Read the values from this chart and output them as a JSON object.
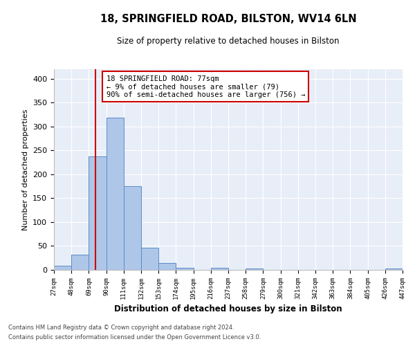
{
  "title": "18, SPRINGFIELD ROAD, BILSTON, WV14 6LN",
  "subtitle": "Size of property relative to detached houses in Bilston",
  "xlabel": "Distribution of detached houses by size in Bilston",
  "ylabel": "Number of detached properties",
  "bar_values": [
    8,
    32,
    238,
    319,
    175,
    46,
    15,
    5,
    0,
    5,
    0,
    3,
    0,
    0,
    0,
    0,
    0,
    0,
    0,
    3
  ],
  "bin_labels": [
    "27sqm",
    "48sqm",
    "69sqm",
    "90sqm",
    "111sqm",
    "132sqm",
    "153sqm",
    "174sqm",
    "195sqm",
    "216sqm",
    "237sqm",
    "258sqm",
    "279sqm",
    "300sqm",
    "321sqm",
    "342sqm",
    "363sqm",
    "384sqm",
    "405sqm",
    "426sqm",
    "447sqm"
  ],
  "bar_color": "#aec6e8",
  "bar_edge_color": "#5b8cc8",
  "fig_background": "#ffffff",
  "axes_background": "#e8eef8",
  "grid_color": "#ffffff",
  "vline_color": "#cc0000",
  "annotation_text": "18 SPRINGFIELD ROAD: 77sqm\n← 9% of detached houses are smaller (79)\n90% of semi-detached houses are larger (756) →",
  "annotation_box_color": "#ffffff",
  "annotation_box_edge": "#cc0000",
  "ylim": [
    0,
    420
  ],
  "yticks": [
    0,
    50,
    100,
    150,
    200,
    250,
    300,
    350,
    400
  ],
  "footnote1": "Contains HM Land Registry data © Crown copyright and database right 2024.",
  "footnote2": "Contains public sector information licensed under the Open Government Licence v3.0."
}
